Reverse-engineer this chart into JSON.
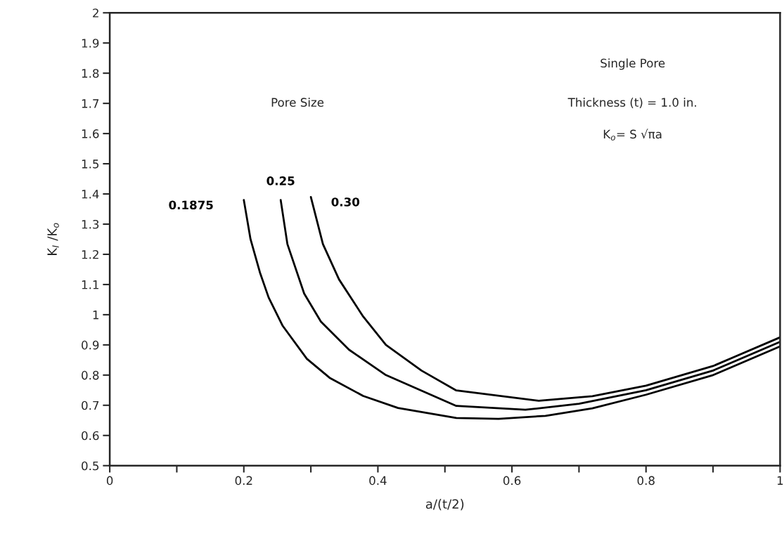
{
  "chart_data": {
    "type": "line",
    "xlabel": "a/(t/2)",
    "ylabel": "K$_{I}$ /K$_{o}$",
    "xlim": [
      0,
      1
    ],
    "ylim": [
      0.5,
      2
    ],
    "xticks": [
      0,
      {
        "value": 0.1,
        "label": null
      },
      0.2,
      {
        "value": 0.3,
        "label": null
      },
      0.4,
      {
        "value": 0.5,
        "label": null
      },
      0.6,
      {
        "value": 0.7,
        "label": null
      },
      0.8,
      {
        "value": 0.9,
        "label": null
      },
      1
    ],
    "yticks": [
      0.5,
      0.6,
      0.7,
      0.8,
      0.9,
      1,
      1.1,
      1.2,
      1.3,
      1.4,
      1.5,
      1.6,
      1.7,
      1.8,
      1.9,
      2
    ],
    "grid": false,
    "legend": false,
    "marker": "none",
    "line_style": "solid",
    "legend_title": "Pore Size",
    "annotations": [
      "Single Pore",
      "Thickness (t) = 1.0 in.",
      "K$_{o}$= S √πa"
    ],
    "series": [
      {
        "name": "0.1875",
        "color": "#000000",
        "x": [
          0.2,
          0.21,
          0.224,
          0.237,
          0.258,
          0.294,
          0.328,
          0.378,
          0.43,
          0.517,
          0.58,
          0.65,
          0.72,
          0.8,
          0.9,
          1.0
        ],
        "values": [
          1.38,
          1.25,
          1.14,
          1.057,
          0.963,
          0.854,
          0.791,
          0.731,
          0.691,
          0.658,
          0.655,
          0.665,
          0.69,
          0.735,
          0.8,
          0.895
        ]
      },
      {
        "name": "0.25",
        "color": "#000000",
        "x": [
          0.255,
          0.265,
          0.29,
          0.315,
          0.357,
          0.412,
          0.517,
          0.62,
          0.7,
          0.8,
          0.9,
          1.0
        ],
        "values": [
          1.38,
          1.234,
          1.07,
          0.977,
          0.884,
          0.8,
          0.698,
          0.685,
          0.705,
          0.75,
          0.815,
          0.91
        ]
      },
      {
        "name": "0.30",
        "color": "#000000",
        "x": [
          0.3,
          0.318,
          0.342,
          0.378,
          0.412,
          0.465,
          0.517,
          0.64,
          0.72,
          0.8,
          0.9,
          1.0
        ],
        "values": [
          1.39,
          1.234,
          1.117,
          0.994,
          0.9,
          0.815,
          0.749,
          0.715,
          0.73,
          0.765,
          0.83,
          0.925
        ]
      }
    ]
  }
}
